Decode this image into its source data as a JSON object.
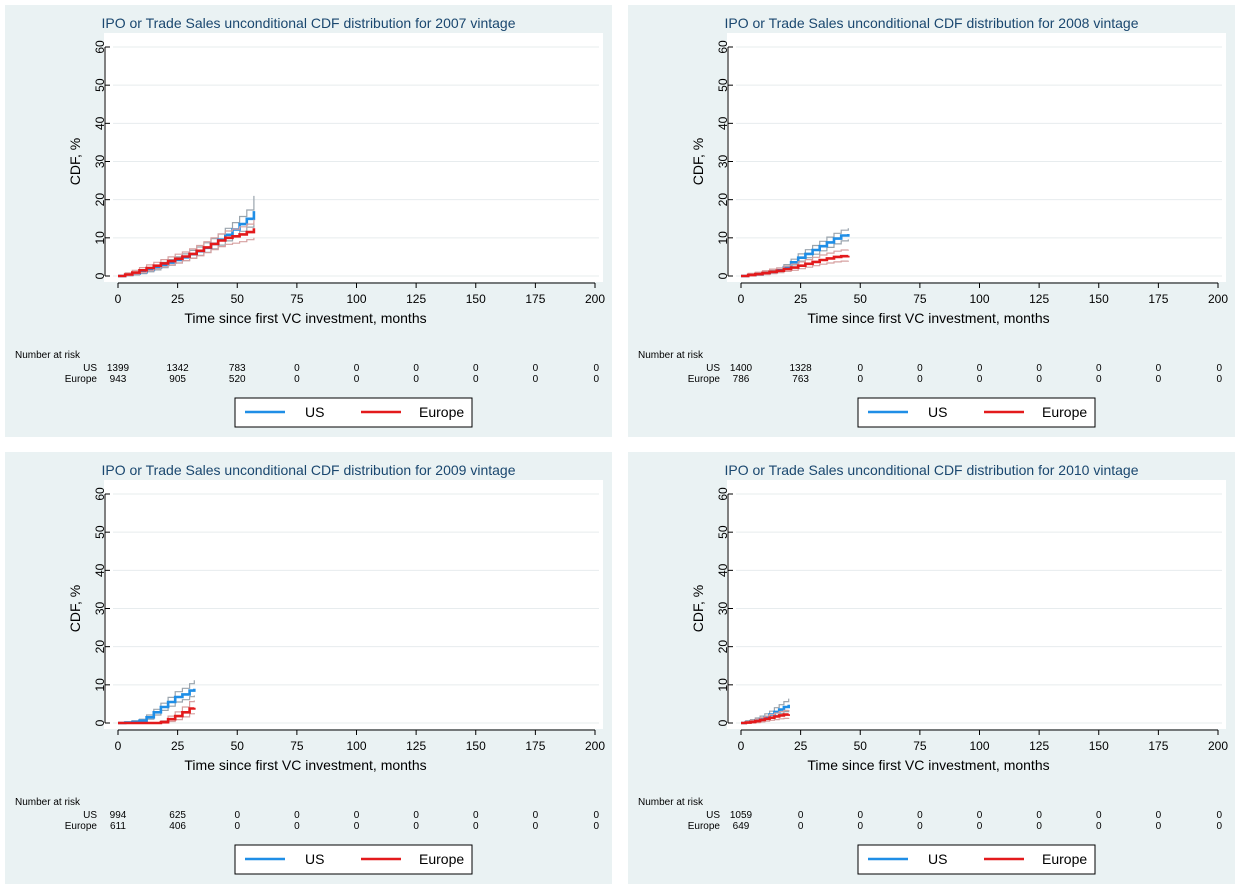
{
  "colors": {
    "us": "#1f8ee6",
    "europe": "#e31a1c",
    "ci_us": "#9aa4ad",
    "ci_europe": "#d6a0a0",
    "panel_bg": "#eaf2f3",
    "grid": "#e7ecee",
    "title": "#1a476f"
  },
  "chart_data": [
    {
      "type": "line",
      "title": "IPO or Trade Sales unconditional CDF distribution for 2007 vintage",
      "xlabel": "Time since first VC investment, months",
      "ylabel": "CDF, %",
      "xlim": [
        0,
        200
      ],
      "ylim": [
        0,
        60
      ],
      "xticks": [
        0,
        25,
        50,
        75,
        100,
        125,
        150,
        175,
        200
      ],
      "yticks": [
        0,
        10,
        20,
        30,
        40,
        50,
        60
      ],
      "grid": true,
      "legend_position": "bottom",
      "series": [
        {
          "name": "US",
          "x": [
            0,
            3,
            6,
            9,
            12,
            15,
            18,
            21,
            24,
            27,
            30,
            33,
            36,
            39,
            42,
            45,
            48,
            51,
            54,
            57
          ],
          "y": [
            0,
            0.3,
            0.6,
            1.0,
            1.6,
            2.2,
            2.9,
            3.5,
            4.2,
            4.9,
            5.7,
            6.5,
            7.4,
            8.4,
            9.5,
            10.8,
            12.2,
            13.6,
            15.0,
            17.0
          ],
          "ci_low": [
            0,
            0.1,
            0.3,
            0.6,
            1.1,
            1.6,
            2.2,
            2.8,
            3.4,
            4.0,
            4.7,
            5.4,
            6.2,
            7.1,
            8.1,
            9.2,
            10.5,
            11.7,
            12.8,
            14.0
          ],
          "ci_high": [
            0,
            0.5,
            0.9,
            1.4,
            2.1,
            2.8,
            3.6,
            4.3,
            5.0,
            5.8,
            6.7,
            7.6,
            8.7,
            9.8,
            11.0,
            12.5,
            14.0,
            15.6,
            17.3,
            21.0
          ]
        },
        {
          "name": "Europe",
          "x": [
            0,
            3,
            6,
            9,
            12,
            15,
            18,
            21,
            24,
            27,
            30,
            33,
            36,
            39,
            42,
            45,
            48,
            51,
            54,
            57
          ],
          "y": [
            0,
            0.4,
            0.9,
            1.5,
            2.1,
            2.7,
            3.3,
            3.9,
            4.5,
            5.1,
            5.8,
            6.6,
            7.5,
            8.4,
            9.3,
            10.0,
            10.4,
            10.9,
            11.5,
            12.5
          ],
          "ci_low": [
            0,
            0.1,
            0.5,
            0.9,
            1.4,
            1.9,
            2.4,
            2.9,
            3.4,
            4.0,
            4.6,
            5.3,
            6.1,
            6.9,
            7.7,
            8.3,
            8.6,
            9.0,
            9.5,
            10.0
          ],
          "ci_high": [
            0,
            0.8,
            1.5,
            2.2,
            2.9,
            3.6,
            4.3,
            5.0,
            5.7,
            6.3,
            7.1,
            8.0,
            9.0,
            10.0,
            11.0,
            11.8,
            12.3,
            12.9,
            13.6,
            14.8
          ]
        }
      ],
      "risk_table": {
        "header": "Number at risk",
        "rows": [
          {
            "label": "US",
            "values": [
              "1399",
              "1342",
              "783",
              "0",
              "0",
              "0",
              "0",
              "0",
              "0"
            ]
          },
          {
            "label": "Europe",
            "values": [
              "943",
              "905",
              "520",
              "0",
              "0",
              "0",
              "0",
              "0",
              "0"
            ]
          }
        ]
      }
    },
    {
      "type": "line",
      "title": "IPO or Trade Sales unconditional CDF distribution for 2008 vintage",
      "xlabel": "Time since first VC investment, months",
      "ylabel": "CDF, %",
      "xlim": [
        0,
        200
      ],
      "ylim": [
        0,
        60
      ],
      "xticks": [
        0,
        25,
        50,
        75,
        100,
        125,
        150,
        175,
        200
      ],
      "yticks": [
        0,
        10,
        20,
        30,
        40,
        50,
        60
      ],
      "grid": true,
      "legend_position": "bottom",
      "series": [
        {
          "name": "US",
          "x": [
            0,
            3,
            6,
            9,
            12,
            15,
            18,
            21,
            24,
            27,
            30,
            33,
            36,
            39,
            42,
            45
          ],
          "y": [
            0,
            0.2,
            0.4,
            0.7,
            1.0,
            1.5,
            2.3,
            3.6,
            4.8,
            5.8,
            6.8,
            7.8,
            8.8,
            9.8,
            10.6,
            11.0
          ],
          "ci_low": [
            0,
            0.1,
            0.2,
            0.4,
            0.7,
            1.1,
            1.8,
            2.9,
            3.9,
            4.8,
            5.7,
            6.6,
            7.5,
            8.4,
            9.2,
            9.6
          ],
          "ci_high": [
            0,
            0.4,
            0.7,
            1.1,
            1.5,
            2.1,
            3.0,
            4.4,
            5.8,
            6.9,
            8.0,
            9.1,
            10.2,
            11.2,
            12.0,
            12.5
          ]
        },
        {
          "name": "Europe",
          "x": [
            0,
            3,
            6,
            9,
            12,
            15,
            18,
            21,
            24,
            27,
            30,
            33,
            36,
            39,
            42,
            45
          ],
          "y": [
            0,
            0.3,
            0.5,
            0.8,
            1.1,
            1.4,
            1.8,
            2.2,
            2.7,
            3.2,
            3.7,
            4.2,
            4.6,
            5.0,
            5.2,
            5.3
          ],
          "ci_low": [
            0,
            0.0,
            0.2,
            0.4,
            0.6,
            0.9,
            1.2,
            1.5,
            1.9,
            2.3,
            2.7,
            3.1,
            3.4,
            3.7,
            3.9,
            4.0
          ],
          "ci_high": [
            0,
            0.7,
            1.0,
            1.4,
            1.8,
            2.1,
            2.6,
            3.1,
            3.7,
            4.3,
            4.9,
            5.5,
            6.0,
            6.5,
            6.8,
            6.9
          ]
        }
      ],
      "risk_table": {
        "header": "Number at risk",
        "rows": [
          {
            "label": "US",
            "values": [
              "1400",
              "1328",
              "0",
              "0",
              "0",
              "0",
              "0",
              "0",
              "0"
            ]
          },
          {
            "label": "Europe",
            "values": [
              "786",
              "763",
              "0",
              "0",
              "0",
              "0",
              "0",
              "0",
              "0"
            ]
          }
        ]
      }
    },
    {
      "type": "line",
      "title": "IPO or Trade Sales unconditional CDF distribution for 2009 vintage",
      "xlabel": "Time since first VC investment, months",
      "ylabel": "CDF, %",
      "xlim": [
        0,
        200
      ],
      "ylim": [
        0,
        60
      ],
      "xticks": [
        0,
        25,
        50,
        75,
        100,
        125,
        150,
        175,
        200
      ],
      "yticks": [
        0,
        10,
        20,
        30,
        40,
        50,
        60
      ],
      "grid": true,
      "legend_position": "bottom",
      "series": [
        {
          "name": "US",
          "x": [
            0,
            3,
            6,
            9,
            12,
            15,
            18,
            21,
            24,
            27,
            30,
            32
          ],
          "y": [
            0,
            0.1,
            0.3,
            0.6,
            1.5,
            2.8,
            4.2,
            5.5,
            6.8,
            7.5,
            8.5,
            9.0
          ],
          "ci_low": [
            0,
            0.0,
            0.1,
            0.3,
            1.0,
            2.1,
            3.3,
            4.4,
            5.5,
            6.1,
            6.9,
            7.2
          ],
          "ci_high": [
            0,
            0.3,
            0.6,
            1.0,
            2.1,
            3.6,
            5.2,
            6.7,
            8.2,
            9.1,
            10.3,
            11.2
          ]
        },
        {
          "name": "Europe",
          "x": [
            0,
            3,
            6,
            9,
            12,
            15,
            18,
            21,
            24,
            27,
            30,
            32
          ],
          "y": [
            0,
            0,
            0,
            0,
            0,
            0,
            0.2,
            1.0,
            1.8,
            2.8,
            3.8,
            4.0
          ],
          "ci_low": [
            0,
            0,
            0,
            0,
            0,
            0,
            0.0,
            0.4,
            0.9,
            1.6,
            2.4,
            2.6
          ],
          "ci_high": [
            0,
            0,
            0,
            0,
            0,
            0,
            0.6,
            1.8,
            2.9,
            4.2,
            5.6,
            5.9
          ]
        }
      ],
      "risk_table": {
        "header": "Number at risk",
        "rows": [
          {
            "label": "US",
            "values": [
              "994",
              "625",
              "0",
              "0",
              "0",
              "0",
              "0",
              "0",
              "0"
            ]
          },
          {
            "label": "Europe",
            "values": [
              "611",
              "406",
              "0",
              "0",
              "0",
              "0",
              "0",
              "0",
              "0"
            ]
          }
        ]
      }
    },
    {
      "type": "line",
      "title": "IPO or Trade Sales unconditional CDF distribution for 2010 vintage",
      "xlabel": "Time since first VC investment, months",
      "ylabel": "CDF, %",
      "xlim": [
        0,
        200
      ],
      "ylim": [
        0,
        60
      ],
      "xticks": [
        0,
        25,
        50,
        75,
        100,
        125,
        150,
        175,
        200
      ],
      "yticks": [
        0,
        10,
        20,
        30,
        40,
        50,
        60
      ],
      "grid": true,
      "legend_position": "bottom",
      "series": [
        {
          "name": "US",
          "x": [
            0,
            2,
            4,
            6,
            8,
            10,
            12,
            14,
            16,
            18,
            20
          ],
          "y": [
            0,
            0.2,
            0.4,
            0.7,
            1.1,
            1.6,
            2.2,
            2.9,
            3.5,
            4.2,
            4.8
          ],
          "ci_low": [
            0,
            0.0,
            0.1,
            0.3,
            0.6,
            1.0,
            1.4,
            2.0,
            2.5,
            3.0,
            3.4
          ],
          "ci_high": [
            0,
            0.6,
            0.9,
            1.3,
            1.8,
            2.4,
            3.1,
            4.0,
            4.8,
            5.6,
            6.4
          ]
        },
        {
          "name": "Europe",
          "x": [
            0,
            2,
            4,
            6,
            8,
            10,
            12,
            14,
            16,
            18,
            20
          ],
          "y": [
            0,
            0.1,
            0.3,
            0.5,
            0.8,
            1.1,
            1.4,
            1.7,
            2.0,
            2.2,
            2.3
          ],
          "ci_low": [
            0,
            0.0,
            0.0,
            0.1,
            0.3,
            0.5,
            0.7,
            0.9,
            1.1,
            1.2,
            1.3
          ],
          "ci_high": [
            0,
            0.4,
            0.7,
            1.0,
            1.4,
            1.8,
            2.2,
            2.6,
            3.0,
            3.3,
            3.4
          ]
        }
      ],
      "risk_table": {
        "header": "Number at risk",
        "rows": [
          {
            "label": "US",
            "values": [
              "1059",
              "0",
              "0",
              "0",
              "0",
              "0",
              "0",
              "0",
              "0"
            ]
          },
          {
            "label": "Europe",
            "values": [
              "649",
              "0",
              "0",
              "0",
              "0",
              "0",
              "0",
              "0",
              "0"
            ]
          }
        ]
      }
    }
  ]
}
